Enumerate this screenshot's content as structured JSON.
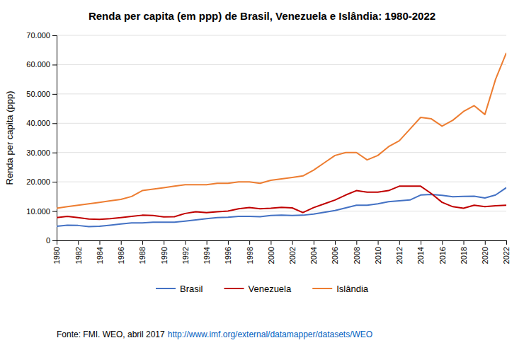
{
  "chart_data": {
    "type": "line",
    "title": "Renda per capita (em ppp) de Brasil, Venezuela e Islândia: 1980-2022",
    "y_label": "Renda per capita (ppp)",
    "x": [
      1980,
      1981,
      1982,
      1983,
      1984,
      1985,
      1986,
      1987,
      1988,
      1989,
      1990,
      1991,
      1992,
      1993,
      1994,
      1995,
      1996,
      1997,
      1998,
      1999,
      2000,
      2001,
      2002,
      2003,
      2004,
      2005,
      2006,
      2007,
      2008,
      2009,
      2010,
      2011,
      2012,
      2013,
      2014,
      2015,
      2016,
      2017,
      2018,
      2019,
      2020,
      2021,
      2022
    ],
    "series": [
      {
        "name": "Brasil",
        "color": "#4472C4",
        "values": [
          4800,
          5200,
          5100,
          4700,
          4800,
          5200,
          5600,
          6000,
          6000,
          6200,
          6200,
          6200,
          6600,
          7000,
          7400,
          7800,
          7900,
          8200,
          8200,
          8100,
          8500,
          8600,
          8500,
          8600,
          9000,
          9600,
          10200,
          11100,
          12000,
          12000,
          12500,
          13200,
          13500,
          13800,
          15500,
          15700,
          15400,
          14900,
          15000,
          15100,
          14500,
          15500,
          18000
        ]
      },
      {
        "name": "Venezuela",
        "color": "#C00000",
        "values": [
          7800,
          8200,
          7800,
          7300,
          7200,
          7400,
          7800,
          8200,
          8600,
          8500,
          8000,
          8100,
          9200,
          9800,
          9500,
          9800,
          10000,
          10800,
          11200,
          10800,
          11000,
          11300,
          11100,
          9500,
          11200,
          12500,
          13800,
          15500,
          17000,
          16500,
          16500,
          17000,
          18500,
          18500,
          18500,
          16000,
          13000,
          11500,
          11000,
          12000,
          11500,
          11800,
          12000
        ]
      },
      {
        "name": "Islândia",
        "color": "#ED7D31",
        "values": [
          11000,
          11500,
          12000,
          12500,
          13000,
          13500,
          14000,
          15000,
          17000,
          17500,
          18000,
          18500,
          19000,
          19000,
          19000,
          19500,
          19500,
          20000,
          20000,
          19500,
          20500,
          21000,
          21500,
          22000,
          24000,
          26500,
          29000,
          30000,
          30000,
          27500,
          29000,
          32000,
          34000,
          38000,
          42000,
          41500,
          39000,
          41000,
          44000,
          46000,
          43000,
          55000,
          64000
        ]
      }
    ],
    "xlim": [
      1980,
      2022
    ],
    "xticks": [
      1980,
      1982,
      1984,
      1986,
      1988,
      1990,
      1992,
      1994,
      1996,
      1998,
      2000,
      2002,
      2004,
      2006,
      2008,
      2010,
      2012,
      2014,
      2016,
      2018,
      2020,
      2022
    ],
    "ylim": [
      0,
      70000
    ],
    "yticks": [
      0,
      {
        "value": 10000,
        "label": "10.000"
      },
      {
        "value": 20000,
        "label": "20.000"
      },
      {
        "value": 30000,
        "label": "30.000"
      },
      {
        "value": 40000,
        "label": "40.000"
      },
      {
        "value": 50000,
        "label": "50.000"
      },
      {
        "value": 60000,
        "label": "60.000"
      },
      {
        "value": 70000,
        "label": "70.000"
      }
    ],
    "grid": true,
    "legend": "bottom",
    "annotations": [
      "Fonte: FMI. WEO, abril 2017 ",
      "http://www.imf.org/external/datamapper/datasets/WEO"
    ]
  }
}
